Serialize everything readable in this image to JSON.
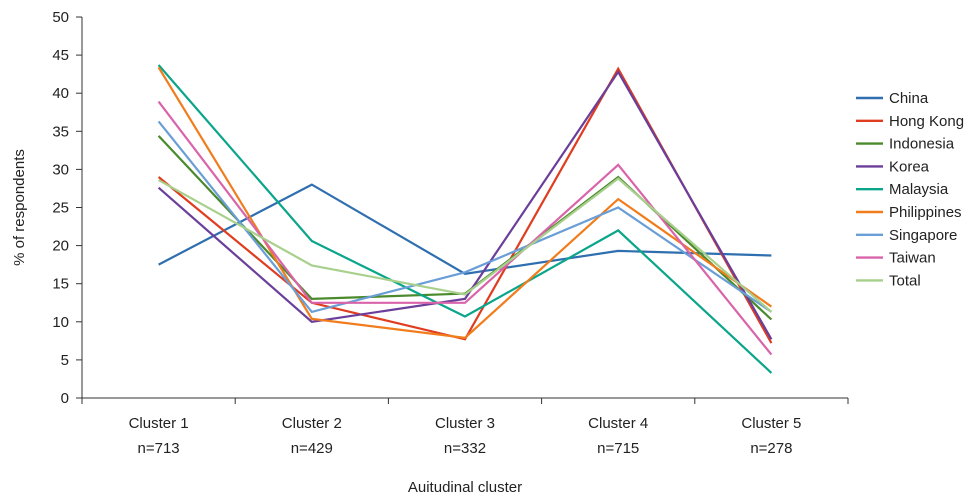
{
  "chart_data": {
    "type": "line",
    "title": "",
    "xlabel": "Auitudinal cluster",
    "ylabel": "% of respondents",
    "ylim": [
      0,
      50
    ],
    "yticks": [
      0,
      5,
      10,
      15,
      20,
      25,
      30,
      35,
      40,
      45,
      50
    ],
    "grid": false,
    "legend_position": "right",
    "categories": [
      {
        "name": "Cluster 1",
        "n": "n=713"
      },
      {
        "name": "Cluster 2",
        "n": "n=429"
      },
      {
        "name": "Cluster 3",
        "n": "n=332"
      },
      {
        "name": "Cluster 4",
        "n": "n=715"
      },
      {
        "name": "Cluster 5",
        "n": "n=278"
      }
    ],
    "series": [
      {
        "name": "China",
        "color": "#2f6fb0",
        "values": [
          17.5,
          28.0,
          16.3,
          19.3,
          18.7
        ]
      },
      {
        "name": "Hong Kong",
        "color": "#e03c1f",
        "values": [
          29.0,
          12.5,
          7.7,
          43.2,
          7.2
        ]
      },
      {
        "name": "Indonesia",
        "color": "#4a8a2c",
        "values": [
          34.4,
          13.0,
          13.7,
          29.0,
          10.3
        ]
      },
      {
        "name": "Korea",
        "color": "#6a3e9a",
        "values": [
          27.6,
          10.0,
          13.0,
          42.8,
          7.7
        ]
      },
      {
        "name": "Malaysia",
        "color": "#0aa58a",
        "values": [
          43.7,
          20.6,
          10.7,
          22.0,
          3.3
        ]
      },
      {
        "name": "Philippines",
        "color": "#f07c1c",
        "values": [
          43.4,
          10.4,
          7.9,
          26.1,
          12.0
        ]
      },
      {
        "name": "Singapore",
        "color": "#6a9ed6",
        "values": [
          36.3,
          11.3,
          16.5,
          25.0,
          11.3
        ]
      },
      {
        "name": "Taiwan",
        "color": "#d964a9",
        "values": [
          38.9,
          12.5,
          12.5,
          30.6,
          5.7
        ]
      },
      {
        "name": "Total",
        "color": "#a8d08d",
        "values": [
          28.6,
          17.4,
          13.6,
          28.8,
          11.3
        ]
      }
    ]
  }
}
